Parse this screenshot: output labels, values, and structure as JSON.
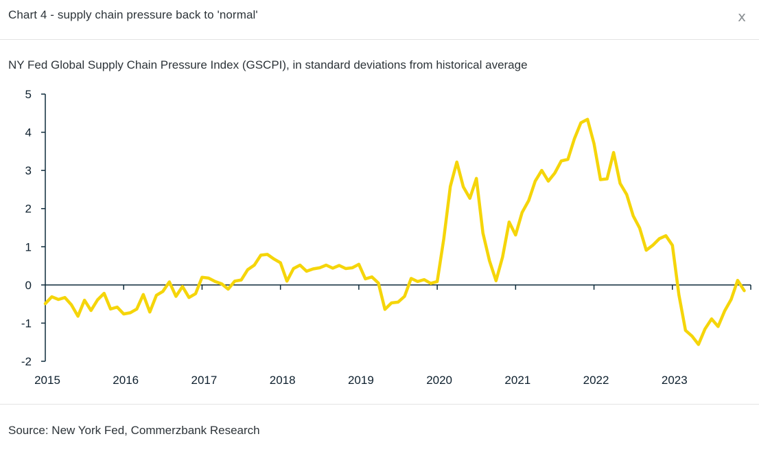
{
  "header": {
    "title": "Chart 4 - supply chain pressure back to 'normal'",
    "close_label": "x"
  },
  "chart_data": {
    "type": "line",
    "subtitle": "NY Fed Global Supply Chain Pressure Index (GSCPI), in standard deviations from historical average",
    "xlabel": "",
    "ylabel": "",
    "ylim": [
      -2,
      5
    ],
    "xlim": [
      2015,
      2024.0
    ],
    "y_ticks": [
      -2,
      -1,
      0,
      1,
      2,
      3,
      4,
      5
    ],
    "x_ticks": [
      2015,
      2016,
      2017,
      2018,
      2019,
      2020,
      2021,
      2022,
      2023
    ],
    "grid": false,
    "series": [
      {
        "name": "GSCPI",
        "color": "#f5d50a",
        "x": [
          2015.0,
          2015.083,
          2015.167,
          2015.25,
          2015.333,
          2015.417,
          2015.5,
          2015.583,
          2015.667,
          2015.75,
          2015.833,
          2015.917,
          2016.0,
          2016.083,
          2016.167,
          2016.25,
          2016.333,
          2016.417,
          2016.5,
          2016.583,
          2016.667,
          2016.75,
          2016.833,
          2016.917,
          2017.0,
          2017.083,
          2017.167,
          2017.25,
          2017.333,
          2017.417,
          2017.5,
          2017.583,
          2017.667,
          2017.75,
          2017.833,
          2017.917,
          2018.0,
          2018.083,
          2018.167,
          2018.25,
          2018.333,
          2018.417,
          2018.5,
          2018.583,
          2018.667,
          2018.75,
          2018.833,
          2018.917,
          2019.0,
          2019.083,
          2019.167,
          2019.25,
          2019.333,
          2019.417,
          2019.5,
          2019.583,
          2019.667,
          2019.75,
          2019.833,
          2019.917,
          2020.0,
          2020.083,
          2020.167,
          2020.25,
          2020.333,
          2020.417,
          2020.5,
          2020.583,
          2020.667,
          2020.75,
          2020.833,
          2020.917,
          2021.0,
          2021.083,
          2021.167,
          2021.25,
          2021.333,
          2021.417,
          2021.5,
          2021.583,
          2021.667,
          2021.75,
          2021.833,
          2021.917,
          2022.0,
          2022.083,
          2022.167,
          2022.25,
          2022.333,
          2022.417,
          2022.5,
          2022.583,
          2022.667,
          2022.75,
          2022.833,
          2022.917,
          2023.0,
          2023.083,
          2023.167,
          2023.25,
          2023.333,
          2023.417,
          2023.5,
          2023.583,
          2023.667,
          2023.75,
          2023.833,
          2023.917
        ],
        "values": [
          -0.49,
          -0.31,
          -0.38,
          -0.33,
          -0.52,
          -0.82,
          -0.4,
          -0.67,
          -0.39,
          -0.22,
          -0.63,
          -0.58,
          -0.76,
          -0.73,
          -0.63,
          -0.25,
          -0.71,
          -0.27,
          -0.17,
          0.08,
          -0.3,
          -0.04,
          -0.33,
          -0.23,
          0.2,
          0.18,
          0.09,
          0.03,
          -0.11,
          0.1,
          0.13,
          0.4,
          0.52,
          0.78,
          0.8,
          0.68,
          0.58,
          0.1,
          0.43,
          0.52,
          0.36,
          0.42,
          0.45,
          0.52,
          0.44,
          0.51,
          0.43,
          0.45,
          0.54,
          0.16,
          0.21,
          0.05,
          -0.64,
          -0.47,
          -0.45,
          -0.3,
          0.17,
          0.09,
          0.14,
          0.04,
          0.09,
          1.2,
          2.58,
          3.22,
          2.57,
          2.27,
          2.79,
          1.36,
          0.63,
          0.11,
          0.73,
          1.65,
          1.31,
          1.9,
          2.21,
          2.72,
          3.0,
          2.72,
          2.93,
          3.25,
          3.29,
          3.83,
          4.25,
          4.34,
          3.7,
          2.76,
          2.78,
          3.47,
          2.66,
          2.37,
          1.81,
          1.49,
          0.91,
          1.04,
          1.21,
          1.29,
          1.04,
          -0.26,
          -1.19,
          -1.34,
          -1.56,
          -1.15,
          -0.89,
          -1.09,
          -0.68,
          -0.38,
          0.12,
          -0.15
        ]
      }
    ]
  },
  "footer": {
    "source": "Source: New York Fed, Commerzbank Research"
  }
}
